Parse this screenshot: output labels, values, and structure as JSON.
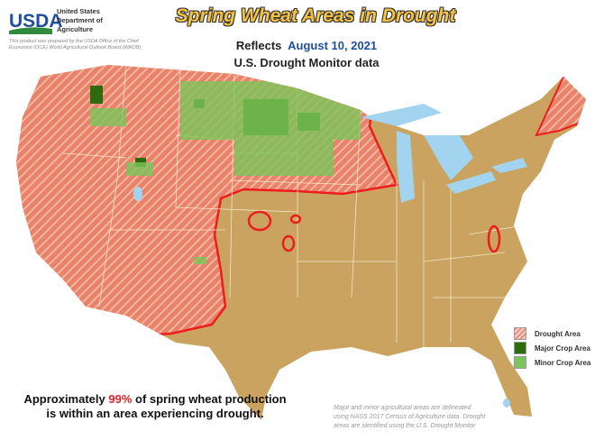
{
  "header": {
    "logo_text": "USDA",
    "department": "United States Department of Agriculture",
    "prepared_by": "This product was prepared by the USDA Office of the Chief Economist (OCE) World Agricultural Outlook Board (WAOB)"
  },
  "title": "Spring Wheat Areas in Drought",
  "reflects": {
    "label": "Reflects",
    "date": "August 10, 2021"
  },
  "subtitle": "U.S. Drought Monitor data",
  "legend": [
    {
      "label": "Drought Area",
      "color": "#f08a7a"
    },
    {
      "label": "Major Crop Area",
      "color": "#2e6b0e"
    },
    {
      "label": "Minor Crop Area",
      "color": "#7cc55a"
    }
  ],
  "summary": {
    "pre": "Approximately ",
    "percent": "99%",
    "post": " of spring wheat production is within an area experiencing drought."
  },
  "source_note": "Major and minor agricultural areas are delineated using NASS 2017 Census of Agriculture data.  Drought areas are identified using the U.S. Drought Monitor",
  "colors": {
    "land": "#c9a35f",
    "drought": "#e8826a",
    "drought_outline": "#ee1c1c",
    "water": "#a3d4ef",
    "border": "#f3e6c8"
  }
}
